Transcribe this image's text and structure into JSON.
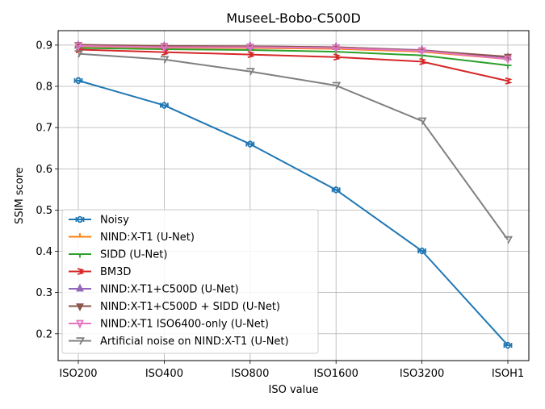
{
  "chart_data": {
    "type": "line",
    "title": "MuseeL-Bobo-C500D",
    "xlabel": "ISO value",
    "ylabel": "SSIM score",
    "categories": [
      "ISO200",
      "ISO400",
      "ISO800",
      "ISO1600",
      "ISO3200",
      "ISOH1"
    ],
    "ylim": [
      0.135,
      0.935
    ],
    "yticks": [
      0.2,
      0.3,
      0.4,
      0.5,
      0.6,
      0.7,
      0.8,
      0.9
    ],
    "ytick_labels": [
      "0.2",
      "0.3",
      "0.4",
      "0.5",
      "0.6",
      "0.7",
      "0.8",
      "0.9"
    ],
    "grid": true,
    "legend_position": "lower-left",
    "series": [
      {
        "name": "Noisy",
        "marker": "0",
        "color": "#1f77b4",
        "values": [
          0.814,
          0.754,
          0.66,
          0.549,
          0.401,
          0.172
        ]
      },
      {
        "name": "NIND:X-T1 (U-Net)",
        "marker": "1",
        "color": "#ff7f0e",
        "values": [
          0.897,
          0.894,
          0.893,
          0.891,
          0.884,
          0.866
        ]
      },
      {
        "name": "SIDD (U-Net)",
        "marker": "2",
        "color": "#2ca02c",
        "values": [
          0.893,
          0.89,
          0.888,
          0.884,
          0.875,
          0.851
        ]
      },
      {
        "name": "BM3D",
        "marker": "3",
        "color": "#d62728",
        "values": [
          0.889,
          0.883,
          0.877,
          0.871,
          0.86,
          0.813
        ]
      },
      {
        "name": "NIND:X-T1+C500D (U-Net)",
        "marker": "4",
        "color": "#9467bd",
        "values": [
          0.899,
          0.897,
          0.897,
          0.895,
          0.888,
          0.87
        ]
      },
      {
        "name": "NIND:X-T1+C500D + SIDD (U-Net)",
        "marker": "5",
        "color": "#8c564b",
        "values": [
          0.901,
          0.898,
          0.897,
          0.895,
          0.887,
          0.872
        ]
      },
      {
        "name": "NIND:X-T1 ISO6400-only (U-Net)",
        "marker": "6",
        "color": "#e377c2",
        "values": [
          0.898,
          0.895,
          0.895,
          0.893,
          0.886,
          0.866
        ]
      },
      {
        "name": "Artificial noise on NIND:X-T1 (U-Net)",
        "marker": "7",
        "color": "#7f7f7f",
        "values": [
          0.879,
          0.865,
          0.836,
          0.802,
          0.716,
          0.428
        ]
      }
    ]
  }
}
